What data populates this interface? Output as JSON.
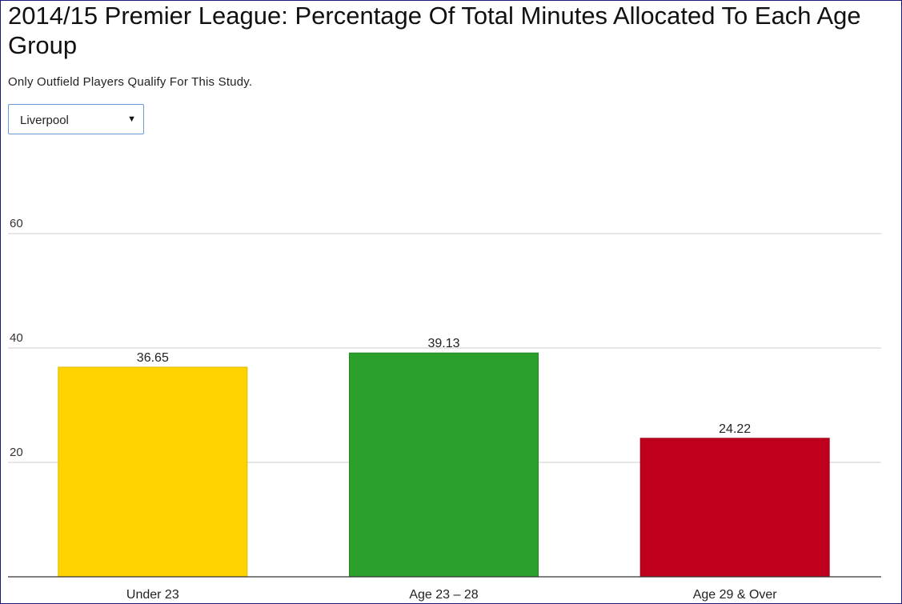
{
  "page": {
    "title": "2014/15 Premier League: Percentage Of Total Minutes Allocated To Each Age Group",
    "subtitle": "Only Outfield Players Qualify For This Study.",
    "team_select": {
      "value": "Liverpool"
    }
  },
  "chart_data": {
    "type": "bar",
    "title": "",
    "xlabel": "",
    "ylabel": "",
    "ylim": [
      0,
      60
    ],
    "yticks": [
      20,
      40,
      60
    ],
    "grid": true,
    "categories": [
      "Under 23",
      "Age 23 – 28",
      "Age 29 & Over"
    ],
    "values": [
      36.65,
      39.13,
      24.22
    ],
    "value_labels": [
      "36.65",
      "39.13",
      "24.22"
    ],
    "colors": [
      "#ffd200",
      "#2ca02c",
      "#bf001c"
    ],
    "edge_colors": [
      "#e0b800",
      "#23871f",
      "#9c0018"
    ],
    "grid_color": "#cccccc",
    "axis_color": "#333333"
  }
}
